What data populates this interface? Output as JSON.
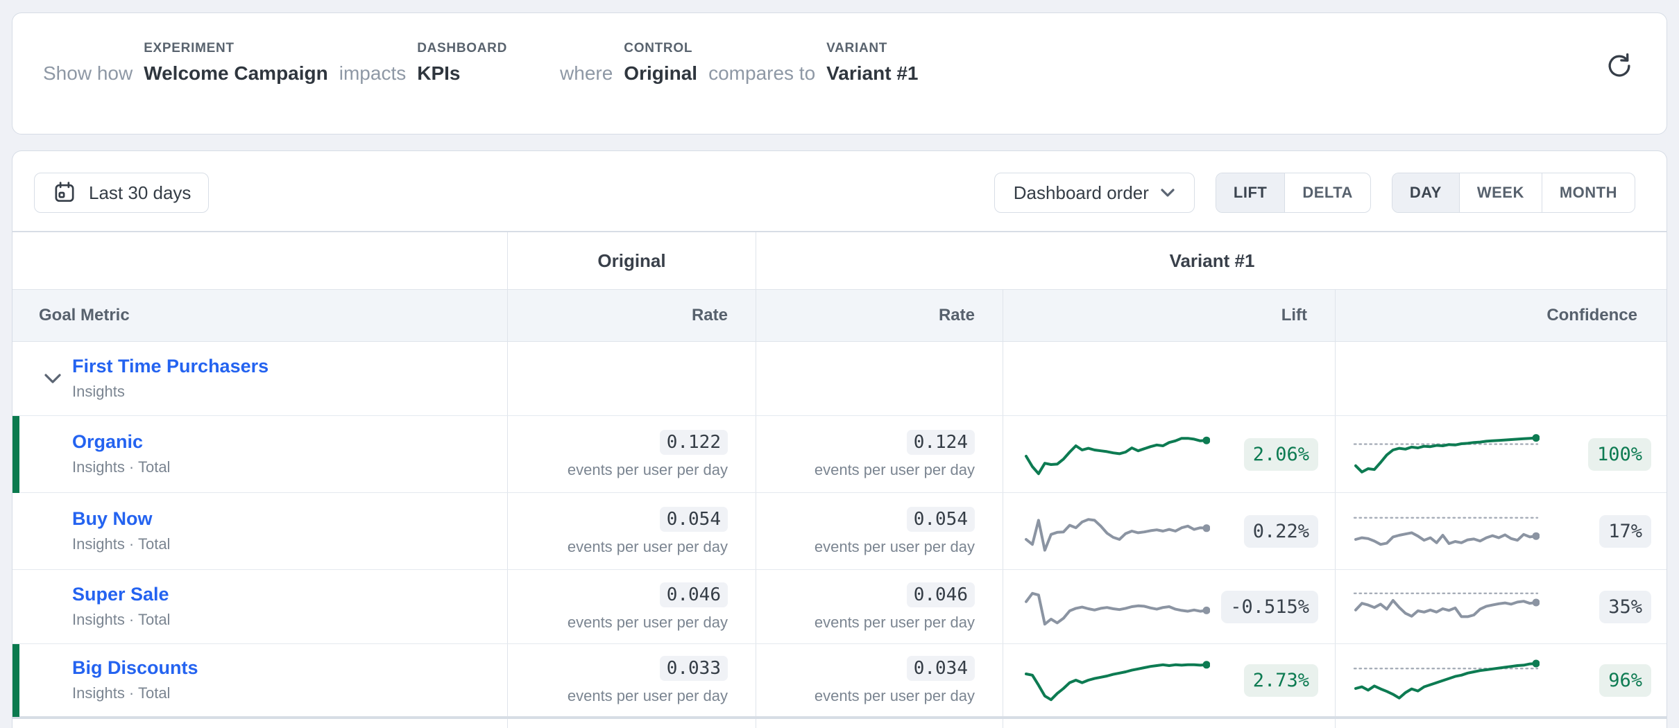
{
  "header": {
    "intro": "Show how",
    "experiment_label": "EXPERIMENT",
    "experiment_value": "Welcome Campaign",
    "impacts": "impacts",
    "dashboard_label": "DASHBOARD",
    "dashboard_value": "KPIs",
    "where": "where",
    "control_label": "CONTROL",
    "control_value": "Original",
    "compares": "compares to",
    "variant_label": "VARIANT",
    "variant_value": "Variant #1"
  },
  "toolbar": {
    "date_range": "Last 30 days",
    "order": "Dashboard order",
    "lift": "LIFT",
    "delta": "DELTA",
    "day": "DAY",
    "week": "WEEK",
    "month": "MONTH",
    "mode_selected": "LIFT",
    "granularity_selected": "DAY"
  },
  "table": {
    "control_header": "Original",
    "variant_header": "Variant #1",
    "goal_metric": "Goal Metric",
    "rate": "Rate",
    "lift": "Lift",
    "confidence": "Confidence",
    "group": {
      "name": "First Time Purchasers",
      "subtitle": "Insights"
    },
    "rows": [
      {
        "name": "Organic",
        "subtitle": "Insights · Total",
        "control_rate": "0.122",
        "control_unit": "events per user per day",
        "variant_rate": "0.124",
        "variant_unit": "events per user per day",
        "lift": "2.06%",
        "confidence": "100%",
        "winner": true,
        "lift_spark": {
          "color": "green",
          "threshold": null,
          "points": [
            0.55,
            0.8,
            0.97,
            0.72,
            0.75,
            0.74,
            0.62,
            0.45,
            0.3,
            0.4,
            0.36,
            0.4,
            0.42,
            0.44,
            0.47,
            0.49,
            0.45,
            0.35,
            0.42,
            0.37,
            0.32,
            0.28,
            0.3,
            0.22,
            0.18,
            0.12,
            0.12,
            0.14,
            0.18,
            0.17
          ]
        },
        "conf_spark": {
          "color": "green",
          "threshold": 0.26,
          "points": [
            0.78,
            0.93,
            0.85,
            0.87,
            0.7,
            0.52,
            0.4,
            0.36,
            0.38,
            0.33,
            0.35,
            0.31,
            0.32,
            0.29,
            0.3,
            0.27,
            0.28,
            0.25,
            0.24,
            0.22,
            0.21,
            0.19,
            0.18,
            0.17,
            0.16,
            0.15,
            0.14,
            0.13,
            0.12,
            0.11
          ]
        }
      },
      {
        "name": "Buy Now",
        "subtitle": "Insights · Total",
        "control_rate": "0.054",
        "control_unit": "events per user per day",
        "variant_rate": "0.054",
        "variant_unit": "events per user per day",
        "lift": "0.22%",
        "confidence": "17%",
        "winner": false,
        "lift_spark": {
          "color": "gray",
          "threshold": null,
          "points": [
            0.7,
            0.82,
            0.24,
            0.96,
            0.58,
            0.53,
            0.52,
            0.36,
            0.42,
            0.28,
            0.22,
            0.24,
            0.38,
            0.55,
            0.65,
            0.7,
            0.56,
            0.5,
            0.54,
            0.52,
            0.49,
            0.47,
            0.5,
            0.46,
            0.5,
            0.42,
            0.38,
            0.46,
            0.42,
            0.43
          ]
        },
        "conf_spark": {
          "color": "gray",
          "threshold": 0.18,
          "points": [
            0.7,
            0.66,
            0.68,
            0.74,
            0.82,
            0.79,
            0.64,
            0.6,
            0.57,
            0.54,
            0.62,
            0.72,
            0.66,
            0.78,
            0.6,
            0.8,
            0.75,
            0.78,
            0.71,
            0.69,
            0.74,
            0.66,
            0.61,
            0.66,
            0.59,
            0.68,
            0.72,
            0.58,
            0.64,
            0.62
          ]
        }
      },
      {
        "name": "Super Sale",
        "subtitle": "Insights · Total",
        "control_rate": "0.046",
        "control_unit": "events per user per day",
        "variant_rate": "0.046",
        "variant_unit": "events per user per day",
        "lift": "-0.515%",
        "confidence": "35%",
        "winner": false,
        "lift_spark": {
          "color": "gray",
          "threshold": null,
          "points": [
            0.38,
            0.18,
            0.22,
            0.92,
            0.8,
            0.89,
            0.78,
            0.6,
            0.54,
            0.51,
            0.55,
            0.58,
            0.54,
            0.52,
            0.55,
            0.57,
            0.54,
            0.5,
            0.48,
            0.49,
            0.53,
            0.56,
            0.52,
            0.5,
            0.56,
            0.59,
            0.61,
            0.58,
            0.61,
            0.59
          ]
        },
        "conf_spark": {
          "color": "gray",
          "threshold": 0.18,
          "points": [
            0.58,
            0.42,
            0.46,
            0.52,
            0.44,
            0.56,
            0.35,
            0.52,
            0.66,
            0.73,
            0.6,
            0.63,
            0.58,
            0.63,
            0.55,
            0.59,
            0.53,
            0.74,
            0.74,
            0.7,
            0.56,
            0.49,
            0.46,
            0.43,
            0.41,
            0.44,
            0.39,
            0.37,
            0.42,
            0.4
          ]
        }
      },
      {
        "name": "Big Discounts",
        "subtitle": "Insights · Total",
        "control_rate": "0.033",
        "control_unit": "events per user per day",
        "variant_rate": "0.034",
        "variant_unit": "events per user per day",
        "lift": "2.73%",
        "confidence": "96%",
        "winner": true,
        "lift_spark": {
          "color": "green",
          "threshold": null,
          "points": [
            0.35,
            0.38,
            0.62,
            0.88,
            0.97,
            0.82,
            0.7,
            0.56,
            0.5,
            0.56,
            0.5,
            0.46,
            0.43,
            0.4,
            0.36,
            0.33,
            0.3,
            0.26,
            0.23,
            0.2,
            0.17,
            0.15,
            0.13,
            0.15,
            0.13,
            0.14,
            0.13,
            0.13,
            0.14,
            0.13
          ]
        },
        "conf_spark": {
          "color": "green",
          "threshold": 0.22,
          "points": [
            0.7,
            0.66,
            0.74,
            0.64,
            0.71,
            0.77,
            0.84,
            0.93,
            0.8,
            0.71,
            0.76,
            0.66,
            0.61,
            0.56,
            0.51,
            0.46,
            0.41,
            0.38,
            0.33,
            0.3,
            0.27,
            0.25,
            0.23,
            0.21,
            0.19,
            0.17,
            0.15,
            0.14,
            0.11,
            0.1
          ]
        }
      }
    ]
  },
  "colors": {
    "positive_green": "#0d7b52",
    "positive_badge_bg": "#e9f1ed",
    "neutral_line": "#8b94a2",
    "neutral_badge_bg": "#eef1f5",
    "link_blue": "#2463f0",
    "threshold_gray": "#a6adb8",
    "winner_bar_green": "#0b7a4e"
  }
}
